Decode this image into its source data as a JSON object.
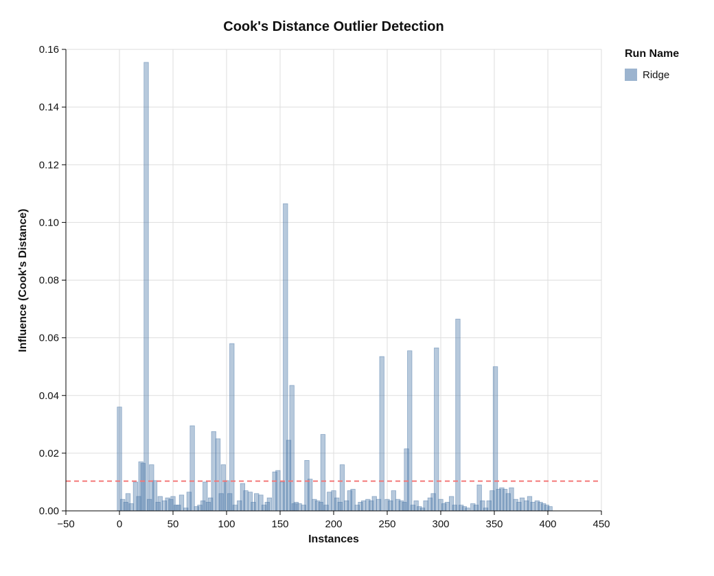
{
  "title": "Cook's Distance Outlier Detection",
  "legend": {
    "title": "Run Name",
    "items": [
      {
        "label": "Ridge",
        "color": "#4c78a8",
        "opacity": 0.45
      }
    ]
  },
  "chart_data": {
    "type": "bar",
    "title": "Cook's Distance Outlier Detection",
    "xlabel": "Instances",
    "ylabel": "Influence (Cook's Distance)",
    "xlim": [
      -50,
      450
    ],
    "ylim": [
      0,
      0.16
    ],
    "x_ticks": [
      -50,
      0,
      50,
      100,
      150,
      200,
      250,
      300,
      350,
      400,
      450
    ],
    "y_ticks": [
      0.0,
      0.02,
      0.04,
      0.06,
      0.08,
      0.1,
      0.12,
      0.14,
      0.16
    ],
    "grid": true,
    "legend_position": "top-right",
    "threshold": {
      "y": 0.0103,
      "color": "#f37777",
      "style": "dashed"
    },
    "series": [
      {
        "name": "Ridge",
        "color": "#4c78a8",
        "opacity": 0.4,
        "points": [
          [
            0,
            0.036
          ],
          [
            3,
            0.004
          ],
          [
            6,
            0.003
          ],
          [
            8,
            0.006
          ],
          [
            11,
            0.0025
          ],
          [
            15,
            0.01
          ],
          [
            18,
            0.005
          ],
          [
            20,
            0.017
          ],
          [
            22,
            0.0165
          ],
          [
            25,
            0.1555
          ],
          [
            28,
            0.004
          ],
          [
            30,
            0.016
          ],
          [
            33,
            0.0105
          ],
          [
            36,
            0.003
          ],
          [
            38,
            0.005
          ],
          [
            42,
            0.0035
          ],
          [
            45,
            0.0045
          ],
          [
            48,
            0.004
          ],
          [
            50,
            0.005
          ],
          [
            53,
            0.002
          ],
          [
            55,
            0.002
          ],
          [
            58,
            0.0055
          ],
          [
            62,
            0.001
          ],
          [
            65,
            0.0065
          ],
          [
            68,
            0.0295
          ],
          [
            72,
            0.0015
          ],
          [
            75,
            0.002
          ],
          [
            78,
            0.0035
          ],
          [
            80,
            0.01
          ],
          [
            83,
            0.003
          ],
          [
            85,
            0.0045
          ],
          [
            88,
            0.0275
          ],
          [
            92,
            0.025
          ],
          [
            95,
            0.006
          ],
          [
            97,
            0.016
          ],
          [
            100,
            0.0105
          ],
          [
            103,
            0.006
          ],
          [
            105,
            0.058
          ],
          [
            108,
            0.002
          ],
          [
            112,
            0.0035
          ],
          [
            115,
            0.0095
          ],
          [
            118,
            0.007
          ],
          [
            122,
            0.0065
          ],
          [
            125,
            0.003
          ],
          [
            128,
            0.006
          ],
          [
            132,
            0.0055
          ],
          [
            135,
            0.002
          ],
          [
            138,
            0.003
          ],
          [
            140,
            0.0045
          ],
          [
            145,
            0.0135
          ],
          [
            148,
            0.014
          ],
          [
            152,
            0.01
          ],
          [
            155,
            0.1065
          ],
          [
            158,
            0.0245
          ],
          [
            161,
            0.0435
          ],
          [
            163,
            0.0025
          ],
          [
            165,
            0.003
          ],
          [
            168,
            0.0025
          ],
          [
            172,
            0.002
          ],
          [
            175,
            0.0175
          ],
          [
            178,
            0.011
          ],
          [
            182,
            0.004
          ],
          [
            185,
            0.0035
          ],
          [
            188,
            0.003
          ],
          [
            190,
            0.0265
          ],
          [
            193,
            0.002
          ],
          [
            196,
            0.0065
          ],
          [
            200,
            0.007
          ],
          [
            203,
            0.0045
          ],
          [
            206,
            0.003
          ],
          [
            208,
            0.016
          ],
          [
            212,
            0.0035
          ],
          [
            215,
            0.007
          ],
          [
            218,
            0.0075
          ],
          [
            222,
            0.002
          ],
          [
            225,
            0.003
          ],
          [
            228,
            0.0035
          ],
          [
            232,
            0.004
          ],
          [
            235,
            0.0035
          ],
          [
            238,
            0.005
          ],
          [
            242,
            0.004
          ],
          [
            245,
            0.0535
          ],
          [
            250,
            0.004
          ],
          [
            253,
            0.0035
          ],
          [
            256,
            0.007
          ],
          [
            260,
            0.004
          ],
          [
            263,
            0.0035
          ],
          [
            266,
            0.003
          ],
          [
            268,
            0.0215
          ],
          [
            271,
            0.0555
          ],
          [
            274,
            0.002
          ],
          [
            277,
            0.0035
          ],
          [
            280,
            0.0015
          ],
          [
            283,
            0.001
          ],
          [
            286,
            0.0035
          ],
          [
            290,
            0.0045
          ],
          [
            293,
            0.006
          ],
          [
            296,
            0.0565
          ],
          [
            300,
            0.004
          ],
          [
            303,
            0.0025
          ],
          [
            306,
            0.003
          ],
          [
            310,
            0.005
          ],
          [
            313,
            0.002
          ],
          [
            316,
            0.0665
          ],
          [
            319,
            0.002
          ],
          [
            322,
            0.0015
          ],
          [
            325,
            0.001
          ],
          [
            330,
            0.0025
          ],
          [
            333,
            0.002
          ],
          [
            336,
            0.009
          ],
          [
            339,
            0.0035
          ],
          [
            342,
            0.001
          ],
          [
            345,
            0.0035
          ],
          [
            348,
            0.007
          ],
          [
            351,
            0.05
          ],
          [
            354,
            0.0075
          ],
          [
            357,
            0.008
          ],
          [
            360,
            0.0075
          ],
          [
            363,
            0.006
          ],
          [
            366,
            0.008
          ],
          [
            370,
            0.004
          ],
          [
            373,
            0.003
          ],
          [
            376,
            0.0045
          ],
          [
            380,
            0.0035
          ],
          [
            383,
            0.005
          ],
          [
            386,
            0.003
          ],
          [
            390,
            0.0035
          ],
          [
            393,
            0.003
          ],
          [
            396,
            0.0025
          ],
          [
            399,
            0.002
          ],
          [
            402,
            0.0015
          ]
        ]
      }
    ]
  }
}
